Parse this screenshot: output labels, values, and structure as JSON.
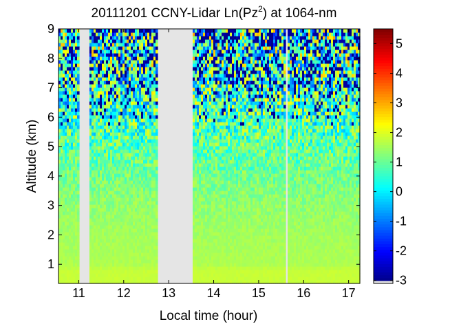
{
  "chart_data": {
    "type": "heatmap",
    "title_main": "20111201 CCNY-Lidar Ln(Pz",
    "title_sup": "2",
    "title_tail": ") at 1064-nm",
    "xlabel": "Local time (hour)",
    "ylabel": "Altitude (km)",
    "xlim": [
      10.55,
      17.25
    ],
    "ylim": [
      0.35,
      9.0
    ],
    "xticks": [
      11,
      12,
      13,
      14,
      15,
      16,
      17
    ],
    "yticks": [
      1,
      2,
      3,
      4,
      5,
      6,
      7,
      8,
      9
    ],
    "colorbar": {
      "range": [
        -3.1,
        5.5
      ],
      "ticks": [
        -3,
        -2,
        -1,
        0,
        1,
        2,
        3,
        4,
        5
      ],
      "colormap": "jet",
      "nodata_color": "#e5e5e5"
    },
    "no_data_intervals": [
      [
        11.03,
        11.25
      ],
      [
        12.73,
        13.55
      ],
      [
        15.62,
        15.66
      ]
    ],
    "profile": {
      "altitude_km": [
        0.35,
        0.8,
        1.0,
        2.0,
        3.0,
        4.0,
        5.0,
        6.0,
        7.0,
        8.0,
        9.0
      ],
      "ln_pz2_mean": [
        1.8,
        1.8,
        1.6,
        1.5,
        1.35,
        1.1,
        0.85,
        0.7,
        0.6,
        0.6,
        0.6
      ],
      "ln_pz2_noise": [
        0.05,
        0.05,
        0.1,
        0.15,
        0.3,
        0.5,
        0.9,
        1.5,
        2.0,
        2.3,
        2.5
      ]
    }
  }
}
